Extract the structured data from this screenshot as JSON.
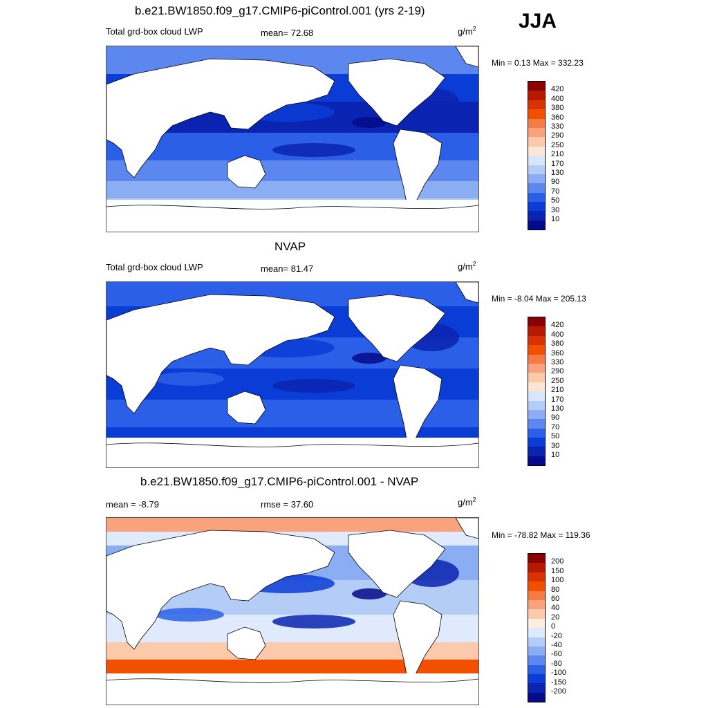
{
  "season": "JJA",
  "panels": [
    {
      "title": "b.e21.BW1850.f09_g17.CMIP6-piControl.001 (yrs 2-19)",
      "left_label": "Total grd-box cloud LWP",
      "stat_label": "mean=  72.68",
      "units_base": "g/m",
      "units_exp": "2",
      "minmax": "Min =   0.13 Max = 332.23",
      "legend_labels": [
        "420",
        "400",
        "380",
        "360",
        "330",
        "290",
        "250",
        "210",
        "170",
        "130",
        "90",
        "70",
        "50",
        "30",
        "10"
      ],
      "legend_colors": [
        "#8b0000",
        "#b51a00",
        "#d83200",
        "#f25000",
        "#f57b45",
        "#f9a27c",
        "#fcc9aa",
        "#fde6d4",
        "#d7e6fb",
        "#b4cdf7",
        "#8aadf4",
        "#5b87ef",
        "#2b5fe8",
        "#0a3cd6",
        "#0a23b0",
        "#050a8a"
      ]
    },
    {
      "title": "NVAP",
      "left_label": "Total grd-box cloud LWP",
      "stat_label": "mean=  81.47",
      "units_base": "g/m",
      "units_exp": "2",
      "minmax": "Min =  -8.04 Max = 205.13",
      "legend_labels": [
        "420",
        "400",
        "380",
        "360",
        "330",
        "290",
        "250",
        "210",
        "170",
        "130",
        "90",
        "70",
        "50",
        "30",
        "10"
      ],
      "legend_colors": [
        "#8b0000",
        "#b51a00",
        "#d83200",
        "#f25000",
        "#f57b45",
        "#f9a27c",
        "#fcc9aa",
        "#fde6d4",
        "#d7e6fb",
        "#b4cdf7",
        "#8aadf4",
        "#5b87ef",
        "#2b5fe8",
        "#0a3cd6",
        "#0a23b0",
        "#050a8a"
      ]
    },
    {
      "title": "b.e21.BW1850.f09_g17.CMIP6-piControl.001 - NVAP",
      "left_label": "mean =  -8.79",
      "stat_label": "rmse =  37.60",
      "units_base": "g/m",
      "units_exp": "2",
      "minmax": "Min = -78.82 Max = 119.36",
      "legend_labels": [
        "200",
        "150",
        "100",
        "80",
        "60",
        "40",
        "20",
        "0",
        "-20",
        "-40",
        "-60",
        "-80",
        "-100",
        "-150",
        "-200"
      ],
      "legend_colors": [
        "#8b0000",
        "#b51a00",
        "#d83200",
        "#f25000",
        "#f57b45",
        "#f9a27c",
        "#fcc9aa",
        "#fdeee2",
        "#dfeafc",
        "#b4cdf7",
        "#8aadf4",
        "#5b87ef",
        "#2b5fe8",
        "#0a3cd6",
        "#0a23b0",
        "#050a8a"
      ]
    }
  ]
}
